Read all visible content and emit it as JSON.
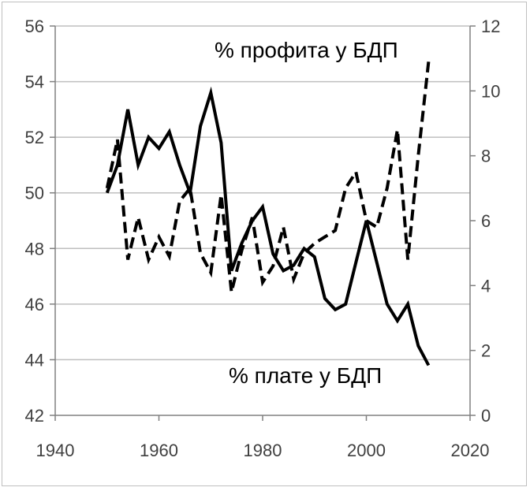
{
  "chart_data": {
    "type": "line",
    "title": "",
    "xlabel": "",
    "ylabel": "",
    "xlim": [
      1940,
      2020
    ],
    "ylim_left": [
      42,
      56
    ],
    "ylim_right": [
      0,
      12
    ],
    "x_ticks": [
      "1940",
      "1960",
      "1980",
      "2000",
      "2020"
    ],
    "y_left_ticks": [
      "42",
      "44",
      "46",
      "48",
      "50",
      "52",
      "54",
      "56"
    ],
    "y_right_ticks": [
      "0",
      "2",
      "4",
      "6",
      "8",
      "10",
      "12"
    ],
    "grid": "horizontal",
    "legend": "none",
    "annotations": {
      "profit": "% профита у БДП",
      "wages": "% плате у БДП"
    },
    "series": [
      {
        "name": "% плате у БДП",
        "axis": "left",
        "style": "solid",
        "color": "#000000",
        "x": [
          1950,
          1952,
          1954,
          1956,
          1958,
          1960,
          1962,
          1964,
          1966,
          1968,
          1970,
          1972,
          1974,
          1976,
          1978,
          1980,
          1982,
          1984,
          1986,
          1988,
          1990,
          1992,
          1994,
          1996,
          1998,
          2000,
          2002,
          2004,
          2006,
          2008,
          2010,
          2012
        ],
        "y": [
          50.0,
          51.0,
          53.0,
          51.0,
          52.0,
          51.6,
          52.2,
          51.0,
          50.0,
          52.4,
          53.6,
          51.8,
          47.2,
          48.2,
          49.0,
          49.5,
          47.8,
          47.2,
          47.4,
          48.0,
          47.7,
          46.2,
          45.8,
          46.0,
          47.5,
          49.0,
          47.5,
          46.0,
          45.4,
          46.0,
          44.5,
          43.8
        ]
      },
      {
        "name": "% профита у БДП",
        "axis": "right",
        "style": "dashed",
        "color": "#000000",
        "x": [
          1950,
          1952,
          1954,
          1956,
          1958,
          1960,
          1962,
          1964,
          1966,
          1968,
          1970,
          1972,
          1974,
          1976,
          1978,
          1980,
          1982,
          1984,
          1986,
          1988,
          1990,
          1992,
          1994,
          1996,
          1998,
          2000,
          2002,
          2004,
          2006,
          2008,
          2010,
          2012
        ],
        "y": [
          7.0,
          8.5,
          4.8,
          6.1,
          4.8,
          5.5,
          4.9,
          6.6,
          7.0,
          5.0,
          4.4,
          6.8,
          3.8,
          5.1,
          6.1,
          4.1,
          4.6,
          5.8,
          4.2,
          5.0,
          5.3,
          5.5,
          5.7,
          7.0,
          7.5,
          6.0,
          5.8,
          7.0,
          8.8,
          4.8,
          8.0,
          10.9
        ]
      }
    ]
  }
}
